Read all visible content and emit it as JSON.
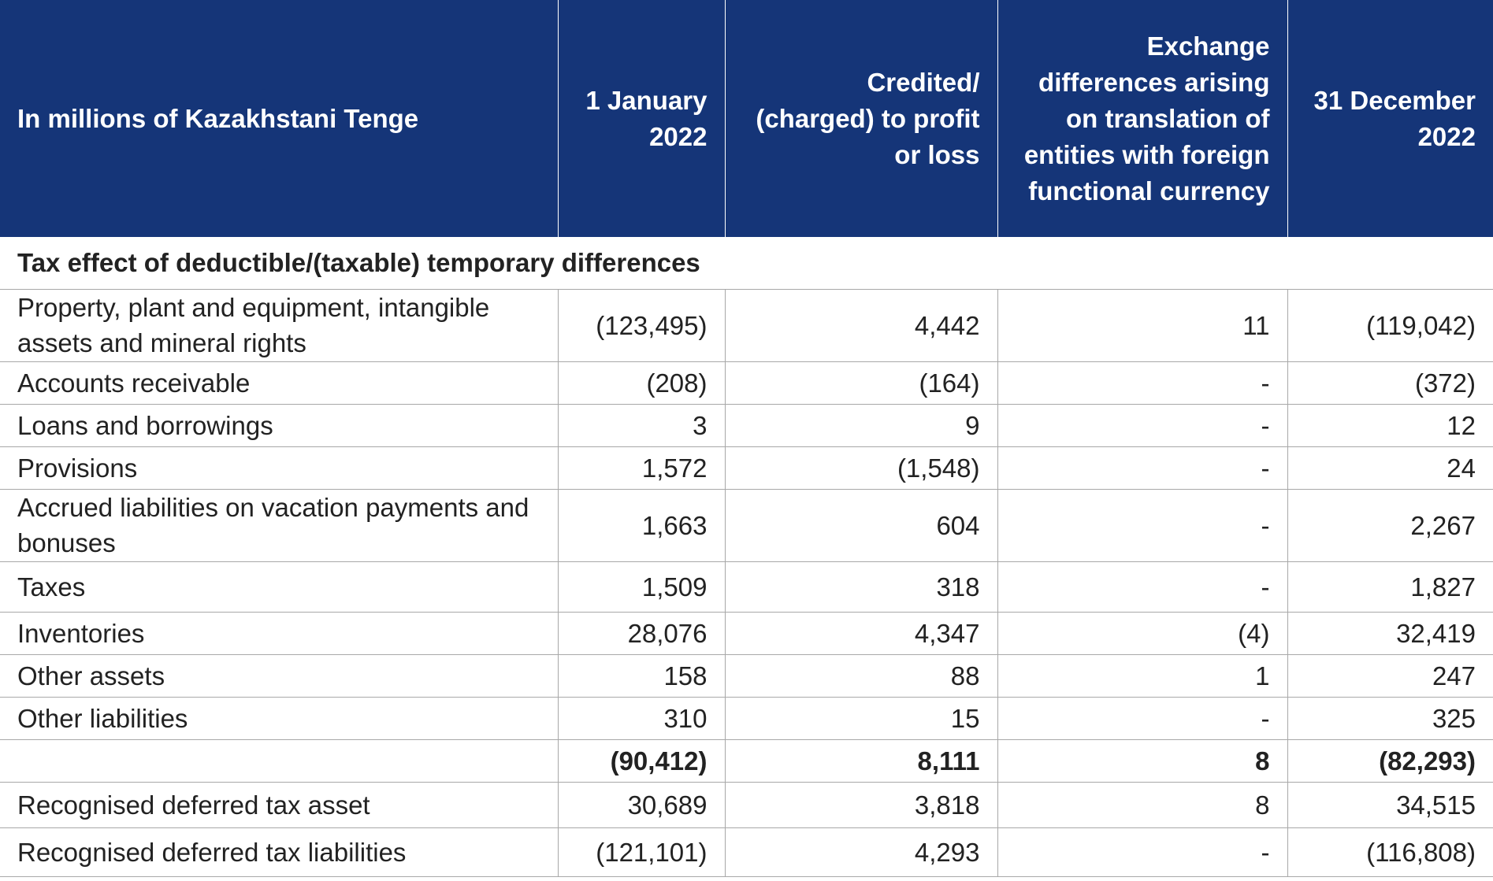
{
  "table": {
    "headers": [
      "In millions of Kazakhstani Tenge",
      "1 January 2022",
      "Credited/ (charged) to profit or loss",
      "Exchange differences arising on translation of entities with foreign functional currency",
      "31 December 2022"
    ],
    "section_title": "Tax effect of deductible/(taxable) temporary differences",
    "rows": [
      {
        "label": "Property, plant and equipment, intangible assets and mineral rights",
        "jan": "(123,495)",
        "pl": "4,442",
        "fx": "11",
        "dec": "(119,042)"
      },
      {
        "label": "Accounts receivable",
        "jan": "(208)",
        "pl": "(164)",
        "fx": "-",
        "dec": "(372)"
      },
      {
        "label": "Loans and borrowings",
        "jan": "3",
        "pl": "9",
        "fx": "-",
        "dec": "12"
      },
      {
        "label": "Provisions",
        "jan": "1,572",
        "pl": "(1,548)",
        "fx": "-",
        "dec": "24"
      },
      {
        "label": "Accrued liabilities on vacation payments and bonuses",
        "jan": "1,663",
        "pl": "604",
        "fx": "-",
        "dec": "2,267"
      },
      {
        "label": "Taxes",
        "jan": "1,509",
        "pl": "318",
        "fx": "-",
        "dec": "1,827"
      },
      {
        "label": "Inventories",
        "jan": "28,076",
        "pl": "4,347",
        "fx": "(4)",
        "dec": "32,419"
      },
      {
        "label": "Other assets",
        "jan": "158",
        "pl": "88",
        "fx": "1",
        "dec": "247"
      },
      {
        "label": "Other liabilities",
        "jan": "310",
        "pl": "15",
        "fx": "-",
        "dec": "325"
      }
    ],
    "total": {
      "label": "",
      "jan": "(90,412)",
      "pl": "8,111",
      "fx": "8",
      "dec": "(82,293)"
    },
    "recognised": [
      {
        "label": "Recognised deferred tax asset",
        "jan": "30,689",
        "pl": "3,818",
        "fx": "8",
        "dec": "34,515"
      },
      {
        "label": "Recognised deferred tax liabilities",
        "jan": "(121,101)",
        "pl": "4,293",
        "fx": "-",
        "dec": "(116,808)"
      }
    ],
    "colors": {
      "header_bg": "#153578",
      "header_text": "#ffffff",
      "rule": "#a8a8a8"
    }
  }
}
